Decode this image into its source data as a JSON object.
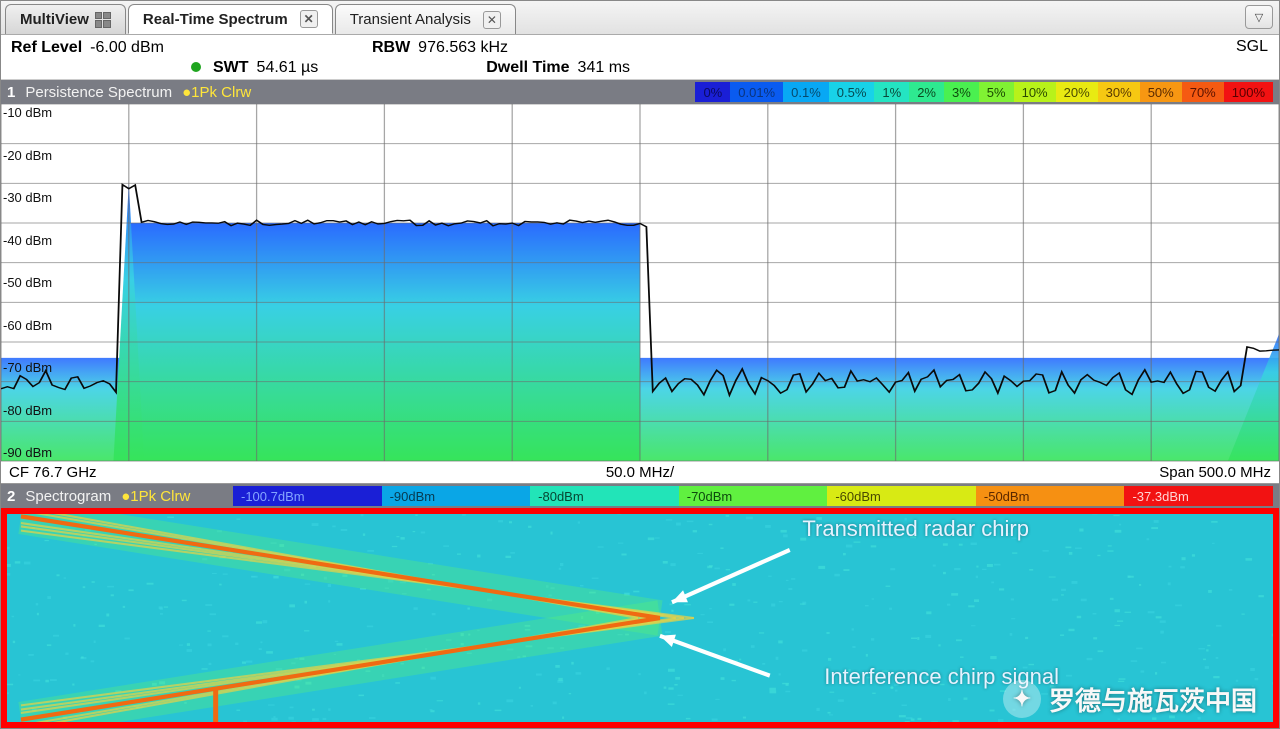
{
  "tabs": {
    "leading": "MultiView",
    "items": [
      {
        "label": "Real-Time Spectrum",
        "active": true
      },
      {
        "label": "Transient Analysis",
        "active": false
      }
    ]
  },
  "info": {
    "refLevelLabel": "Ref Level",
    "refLevelValue": "-6.00 dBm",
    "rbwLabel": "RBW",
    "rbwValue": "976.563 kHz",
    "swtLabel": "SWT",
    "swtValue": "54.61 µs",
    "dwellLabel": "Dwell Time",
    "dwellValue": "341 ms",
    "sgl": "SGL"
  },
  "pane1": {
    "index": "1",
    "title": "Persistence Spectrum",
    "trace": "●1Pk Clrw",
    "colorscale": {
      "stops": [
        {
          "label": "0%",
          "bg": "#1a1fd6",
          "fg": "#0a0a60"
        },
        {
          "label": "0.01%",
          "bg": "#0a5bf0",
          "fg": "#0a347e"
        },
        {
          "label": "0.1%",
          "bg": "#08a8f4",
          "fg": "#064a6e"
        },
        {
          "label": "0.5%",
          "bg": "#18d2e8",
          "fg": "#064a52"
        },
        {
          "label": "1%",
          "bg": "#24e4c2",
          "fg": "#0a4a3a"
        },
        {
          "label": "2%",
          "bg": "#2ee990",
          "fg": "#0a4a20"
        },
        {
          "label": "3%",
          "bg": "#4af050",
          "fg": "#0d4a0d"
        },
        {
          "label": "5%",
          "bg": "#80f233",
          "fg": "#1a4a00"
        },
        {
          "label": "10%",
          "bg": "#b8f21a",
          "fg": "#2a4a00"
        },
        {
          "label": "20%",
          "bg": "#e8ea12",
          "fg": "#4a4a00"
        },
        {
          "label": "30%",
          "bg": "#f6c812",
          "fg": "#5a3a00"
        },
        {
          "label": "50%",
          "bg": "#f79712",
          "fg": "#5a2a00"
        },
        {
          "label": "70%",
          "bg": "#f55a12",
          "fg": "#5a1200"
        },
        {
          "label": "100%",
          "bg": "#f21212",
          "fg": "#5a0000"
        }
      ]
    },
    "yTicks": [
      "-10 dBm",
      "-20 dBm",
      "-30 dBm",
      "-40 dBm",
      "-50 dBm",
      "-60 dBm",
      "-70 dBm",
      "-80 dBm",
      "-90 dBm"
    ],
    "status": {
      "left": "CF 76.7 GHz",
      "mid": "50.0 MHz/",
      "right": "Span 500.0 MHz"
    },
    "chart": {
      "background": "#ffffff",
      "gridColor": "#6c6c6c",
      "gridCols": 10,
      "gridRows": 9,
      "fill": {
        "topColor": "#2a6bff",
        "midColor": "#38d0e4",
        "lowColor": "#36e45a"
      },
      "peakTraceColor": "#0a0a0a",
      "rectStartCol": 1.0,
      "rectEndCol": 5.0,
      "rectTopRow": 3.0,
      "baselineRow": 7.0,
      "singlePeak": {
        "col": 1.0,
        "topRow": 2.0
      }
    }
  },
  "pane2": {
    "index": "2",
    "title": "Spectrogram",
    "trace": "●1Pk Clrw",
    "colorscale": {
      "stops": [
        {
          "label": "-100.7dBm",
          "bg": "#1a1fd6",
          "fg": "#83a4ff"
        },
        {
          "label": "-90dBm",
          "bg": "#0aa6e6",
          "fg": "#073a50"
        },
        {
          "label": "-80dBm",
          "bg": "#22e4b8",
          "fg": "#074632"
        },
        {
          "label": "-70dBm",
          "bg": "#60f040",
          "fg": "#0d4a0d"
        },
        {
          "label": "-60dBm",
          "bg": "#d8ea14",
          "fg": "#4a4a00"
        },
        {
          "label": "-50dBm",
          "bg": "#f69012",
          "fg": "#5a2800"
        },
        {
          "label": "-37.3dBm",
          "bg": "#f21212",
          "fg": "#ffd4d4"
        }
      ]
    },
    "background": "#28c4d4",
    "noiseColor1": "#3ad6e0",
    "noiseColor2": "#46e6da",
    "chirpColor": "#f06a12",
    "echoColor": "#e8d246",
    "borderColor": "#ff0000",
    "annotations": {
      "a1": "Transmitted radar chirp",
      "a2": "Interference chirp signal"
    },
    "watermark": "罗德与施瓦茨中国"
  }
}
